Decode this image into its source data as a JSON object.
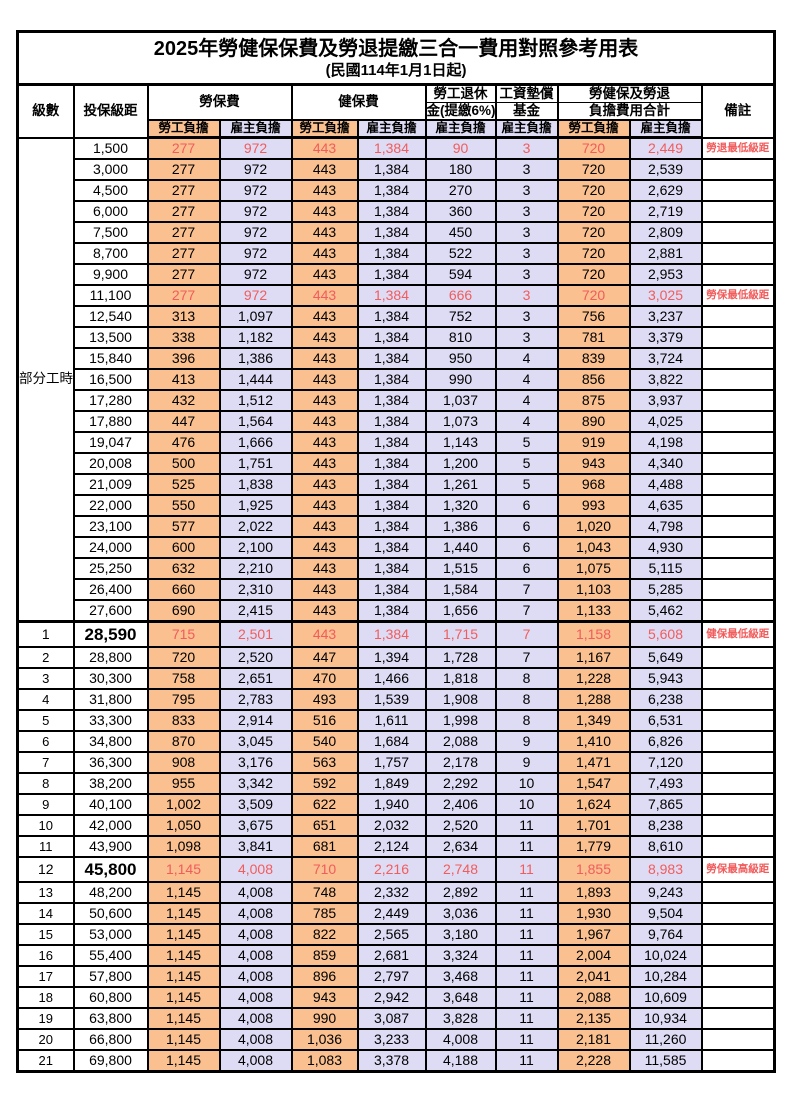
{
  "title": "2025年勞健保保費及勞退提繳三合一費用對照參考用表",
  "subtitle": "(民國114年1月1日起)",
  "header": {
    "level": "級數",
    "bracket": "投保級距",
    "labor_insurance": "勞保費",
    "health_insurance": "健保費",
    "pension_line1": "勞工退休",
    "pension_line2": "金(提繳6%)",
    "wage_fund_line1": "工資墊償",
    "wage_fund_line2": "基金",
    "total_line1": "勞健保及勞退",
    "total_line2": "負擔費用合計",
    "note": "備註",
    "employee_share": "勞工負擔",
    "employer_share": "雇主負擔"
  },
  "part_time_label": "部分工時",
  "colors": {
    "employee_bg": "#FAC090",
    "employer_bg": "#DEDCF5",
    "highlight_text": "#F15C5C",
    "border": "#000000"
  },
  "rows": [
    {
      "lv": "",
      "br": "1,500",
      "v": [
        "277",
        "972",
        "443",
        "1,384",
        "90",
        "3",
        "720",
        "2,449"
      ],
      "note": "勞退最低級距",
      "red": true,
      "big": false
    },
    {
      "lv": "",
      "br": "3,000",
      "v": [
        "277",
        "972",
        "443",
        "1,384",
        "180",
        "3",
        "720",
        "2,539"
      ],
      "note": "",
      "red": false,
      "big": false
    },
    {
      "lv": "",
      "br": "4,500",
      "v": [
        "277",
        "972",
        "443",
        "1,384",
        "270",
        "3",
        "720",
        "2,629"
      ],
      "note": "",
      "red": false,
      "big": false
    },
    {
      "lv": "",
      "br": "6,000",
      "v": [
        "277",
        "972",
        "443",
        "1,384",
        "360",
        "3",
        "720",
        "2,719"
      ],
      "note": "",
      "red": false,
      "big": false
    },
    {
      "lv": "",
      "br": "7,500",
      "v": [
        "277",
        "972",
        "443",
        "1,384",
        "450",
        "3",
        "720",
        "2,809"
      ],
      "note": "",
      "red": false,
      "big": false
    },
    {
      "lv": "",
      "br": "8,700",
      "v": [
        "277",
        "972",
        "443",
        "1,384",
        "522",
        "3",
        "720",
        "2,881"
      ],
      "note": "",
      "red": false,
      "big": false
    },
    {
      "lv": "",
      "br": "9,900",
      "v": [
        "277",
        "972",
        "443",
        "1,384",
        "594",
        "3",
        "720",
        "2,953"
      ],
      "note": "",
      "red": false,
      "big": false
    },
    {
      "lv": "",
      "br": "11,100",
      "v": [
        "277",
        "972",
        "443",
        "1,384",
        "666",
        "3",
        "720",
        "3,025"
      ],
      "note": "勞保最低級距",
      "red": true,
      "big": false
    },
    {
      "lv": "",
      "br": "12,540",
      "v": [
        "313",
        "1,097",
        "443",
        "1,384",
        "752",
        "3",
        "756",
        "3,237"
      ],
      "note": "",
      "red": false,
      "big": false
    },
    {
      "lv": "",
      "br": "13,500",
      "v": [
        "338",
        "1,182",
        "443",
        "1,384",
        "810",
        "3",
        "781",
        "3,379"
      ],
      "note": "",
      "red": false,
      "big": false
    },
    {
      "lv": "",
      "br": "15,840",
      "v": [
        "396",
        "1,386",
        "443",
        "1,384",
        "950",
        "4",
        "839",
        "3,724"
      ],
      "note": "",
      "red": false,
      "big": false
    },
    {
      "lv": "",
      "br": "16,500",
      "v": [
        "413",
        "1,444",
        "443",
        "1,384",
        "990",
        "4",
        "856",
        "3,822"
      ],
      "note": "",
      "red": false,
      "big": false
    },
    {
      "lv": "",
      "br": "17,280",
      "v": [
        "432",
        "1,512",
        "443",
        "1,384",
        "1,037",
        "4",
        "875",
        "3,937"
      ],
      "note": "",
      "red": false,
      "big": false
    },
    {
      "lv": "",
      "br": "17,880",
      "v": [
        "447",
        "1,564",
        "443",
        "1,384",
        "1,073",
        "4",
        "890",
        "4,025"
      ],
      "note": "",
      "red": false,
      "big": false
    },
    {
      "lv": "",
      "br": "19,047",
      "v": [
        "476",
        "1,666",
        "443",
        "1,384",
        "1,143",
        "5",
        "919",
        "4,198"
      ],
      "note": "",
      "red": false,
      "big": false
    },
    {
      "lv": "",
      "br": "20,008",
      "v": [
        "500",
        "1,751",
        "443",
        "1,384",
        "1,200",
        "5",
        "943",
        "4,340"
      ],
      "note": "",
      "red": false,
      "big": false
    },
    {
      "lv": "",
      "br": "21,009",
      "v": [
        "525",
        "1,838",
        "443",
        "1,384",
        "1,261",
        "5",
        "968",
        "4,488"
      ],
      "note": "",
      "red": false,
      "big": false
    },
    {
      "lv": "",
      "br": "22,000",
      "v": [
        "550",
        "1,925",
        "443",
        "1,384",
        "1,320",
        "6",
        "993",
        "4,635"
      ],
      "note": "",
      "red": false,
      "big": false
    },
    {
      "lv": "",
      "br": "23,100",
      "v": [
        "577",
        "2,022",
        "443",
        "1,384",
        "1,386",
        "6",
        "1,020",
        "4,798"
      ],
      "note": "",
      "red": false,
      "big": false
    },
    {
      "lv": "",
      "br": "24,000",
      "v": [
        "600",
        "2,100",
        "443",
        "1,384",
        "1,440",
        "6",
        "1,043",
        "4,930"
      ],
      "note": "",
      "red": false,
      "big": false
    },
    {
      "lv": "",
      "br": "25,250",
      "v": [
        "632",
        "2,210",
        "443",
        "1,384",
        "1,515",
        "6",
        "1,075",
        "5,115"
      ],
      "note": "",
      "red": false,
      "big": false
    },
    {
      "lv": "",
      "br": "26,400",
      "v": [
        "660",
        "2,310",
        "443",
        "1,384",
        "1,584",
        "7",
        "1,103",
        "5,285"
      ],
      "note": "",
      "red": false,
      "big": false
    },
    {
      "lv": "",
      "br": "27,600",
      "v": [
        "690",
        "2,415",
        "443",
        "1,384",
        "1,656",
        "7",
        "1,133",
        "5,462"
      ],
      "note": "",
      "red": false,
      "big": false
    },
    {
      "lv": "1",
      "br": "28,590",
      "v": [
        "715",
        "2,501",
        "443",
        "1,384",
        "1,715",
        "7",
        "1,158",
        "5,608"
      ],
      "note": "健保最低級距",
      "red": true,
      "big": true
    },
    {
      "lv": "2",
      "br": "28,800",
      "v": [
        "720",
        "2,520",
        "447",
        "1,394",
        "1,728",
        "7",
        "1,167",
        "5,649"
      ],
      "note": "",
      "red": false,
      "big": false
    },
    {
      "lv": "3",
      "br": "30,300",
      "v": [
        "758",
        "2,651",
        "470",
        "1,466",
        "1,818",
        "8",
        "1,228",
        "5,943"
      ],
      "note": "",
      "red": false,
      "big": false
    },
    {
      "lv": "4",
      "br": "31,800",
      "v": [
        "795",
        "2,783",
        "493",
        "1,539",
        "1,908",
        "8",
        "1,288",
        "6,238"
      ],
      "note": "",
      "red": false,
      "big": false
    },
    {
      "lv": "5",
      "br": "33,300",
      "v": [
        "833",
        "2,914",
        "516",
        "1,611",
        "1,998",
        "8",
        "1,349",
        "6,531"
      ],
      "note": "",
      "red": false,
      "big": false
    },
    {
      "lv": "6",
      "br": "34,800",
      "v": [
        "870",
        "3,045",
        "540",
        "1,684",
        "2,088",
        "9",
        "1,410",
        "6,826"
      ],
      "note": "",
      "red": false,
      "big": false
    },
    {
      "lv": "7",
      "br": "36,300",
      "v": [
        "908",
        "3,176",
        "563",
        "1,757",
        "2,178",
        "9",
        "1,471",
        "7,120"
      ],
      "note": "",
      "red": false,
      "big": false
    },
    {
      "lv": "8",
      "br": "38,200",
      "v": [
        "955",
        "3,342",
        "592",
        "1,849",
        "2,292",
        "10",
        "1,547",
        "7,493"
      ],
      "note": "",
      "red": false,
      "big": false
    },
    {
      "lv": "9",
      "br": "40,100",
      "v": [
        "1,002",
        "3,509",
        "622",
        "1,940",
        "2,406",
        "10",
        "1,624",
        "7,865"
      ],
      "note": "",
      "red": false,
      "big": false
    },
    {
      "lv": "10",
      "br": "42,000",
      "v": [
        "1,050",
        "3,675",
        "651",
        "2,032",
        "2,520",
        "11",
        "1,701",
        "8,238"
      ],
      "note": "",
      "red": false,
      "big": false
    },
    {
      "lv": "11",
      "br": "43,900",
      "v": [
        "1,098",
        "3,841",
        "681",
        "2,124",
        "2,634",
        "11",
        "1,779",
        "8,610"
      ],
      "note": "",
      "red": false,
      "big": false
    },
    {
      "lv": "12",
      "br": "45,800",
      "v": [
        "1,145",
        "4,008",
        "710",
        "2,216",
        "2,748",
        "11",
        "1,855",
        "8,983"
      ],
      "note": "勞保最高級距",
      "red": true,
      "big": true
    },
    {
      "lv": "13",
      "br": "48,200",
      "v": [
        "1,145",
        "4,008",
        "748",
        "2,332",
        "2,892",
        "11",
        "1,893",
        "9,243"
      ],
      "note": "",
      "red": false,
      "big": false
    },
    {
      "lv": "14",
      "br": "50,600",
      "v": [
        "1,145",
        "4,008",
        "785",
        "2,449",
        "3,036",
        "11",
        "1,930",
        "9,504"
      ],
      "note": "",
      "red": false,
      "big": false
    },
    {
      "lv": "15",
      "br": "53,000",
      "v": [
        "1,145",
        "4,008",
        "822",
        "2,565",
        "3,180",
        "11",
        "1,967",
        "9,764"
      ],
      "note": "",
      "red": false,
      "big": false
    },
    {
      "lv": "16",
      "br": "55,400",
      "v": [
        "1,145",
        "4,008",
        "859",
        "2,681",
        "3,324",
        "11",
        "2,004",
        "10,024"
      ],
      "note": "",
      "red": false,
      "big": false
    },
    {
      "lv": "17",
      "br": "57,800",
      "v": [
        "1,145",
        "4,008",
        "896",
        "2,797",
        "3,468",
        "11",
        "2,041",
        "10,284"
      ],
      "note": "",
      "red": false,
      "big": false
    },
    {
      "lv": "18",
      "br": "60,800",
      "v": [
        "1,145",
        "4,008",
        "943",
        "2,942",
        "3,648",
        "11",
        "2,088",
        "10,609"
      ],
      "note": "",
      "red": false,
      "big": false
    },
    {
      "lv": "19",
      "br": "63,800",
      "v": [
        "1,145",
        "4,008",
        "990",
        "3,087",
        "3,828",
        "11",
        "2,135",
        "10,934"
      ],
      "note": "",
      "red": false,
      "big": false
    },
    {
      "lv": "20",
      "br": "66,800",
      "v": [
        "1,145",
        "4,008",
        "1,036",
        "3,233",
        "4,008",
        "11",
        "2,181",
        "11,260"
      ],
      "note": "",
      "red": false,
      "big": false
    },
    {
      "lv": "21",
      "br": "69,800",
      "v": [
        "1,145",
        "4,008",
        "1,083",
        "3,378",
        "4,188",
        "11",
        "2,228",
        "11,585"
      ],
      "note": "",
      "red": false,
      "big": false
    }
  ]
}
